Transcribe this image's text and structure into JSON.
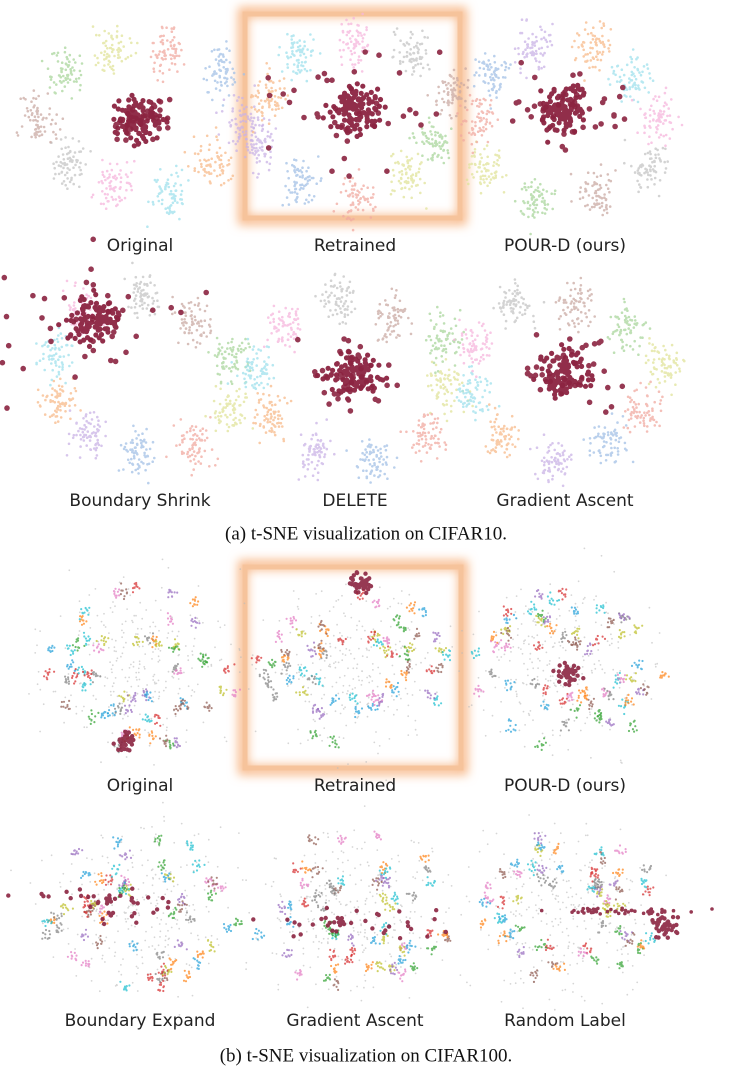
{
  "figure": {
    "panels": [
      {
        "caption": "(a) t-SNE visualization on CIFAR10.",
        "plots": [
          {
            "label": "Original"
          },
          {
            "label": "Retrained"
          },
          {
            "label": "POUR-D (ours)"
          },
          {
            "label": "Boundary Shrink"
          },
          {
            "label": "DELETE"
          },
          {
            "label": "Gradient Ascent"
          }
        ]
      },
      {
        "caption": "(b) t-SNE visualization on CIFAR100.",
        "plots": [
          {
            "label": "Original"
          },
          {
            "label": "Retrained"
          },
          {
            "label": "POUR-D (ours)"
          },
          {
            "label": "Boundary Expand"
          },
          {
            "label": "Gradient Ascent"
          },
          {
            "label": "Random Label"
          }
        ]
      }
    ]
  }
}
